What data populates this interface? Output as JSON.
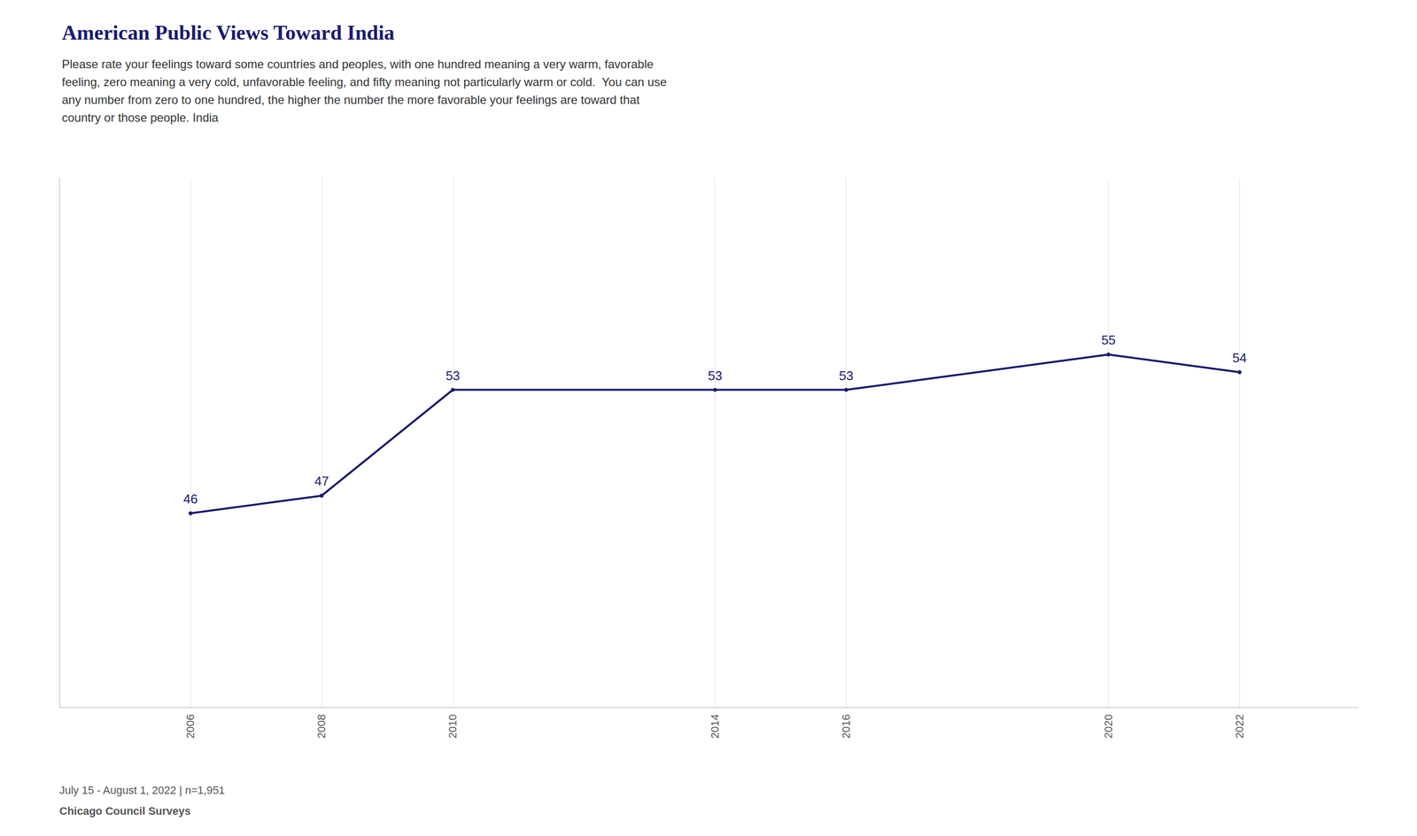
{
  "chart_data": {
    "type": "line",
    "title": "American Public Views Toward India",
    "subtitle": [
      "Please rate your feelings toward some countries and peoples, with one hundred meaning a very warm, favorable",
      "feeling, zero meaning a very cold, unfavorable feeling, and fifty meaning not particularly warm or cold.  You can use",
      "any number from zero to one hundred, the higher the number the more favorable your feelings are toward that",
      "country or those people. India"
    ],
    "annotations": [
      "July 15 - August 1, 2022 | n=1,951",
      "Chicago Council Surveys"
    ],
    "x": [
      2006,
      2008,
      2010,
      2014,
      2016,
      2020,
      2022
    ],
    "values": [
      46,
      47,
      53,
      53,
      53,
      55,
      54
    ],
    "color": "#1a1a6e",
    "xlim": [
      2004.0,
      2023.8
    ],
    "xticks": [
      2006,
      2008,
      2010,
      2014,
      2016,
      2020,
      2022
    ],
    "ylim": [
      35,
      65
    ],
    "tick_labels": "x",
    "grid": true,
    "data_labels": true,
    "legend": "none"
  }
}
